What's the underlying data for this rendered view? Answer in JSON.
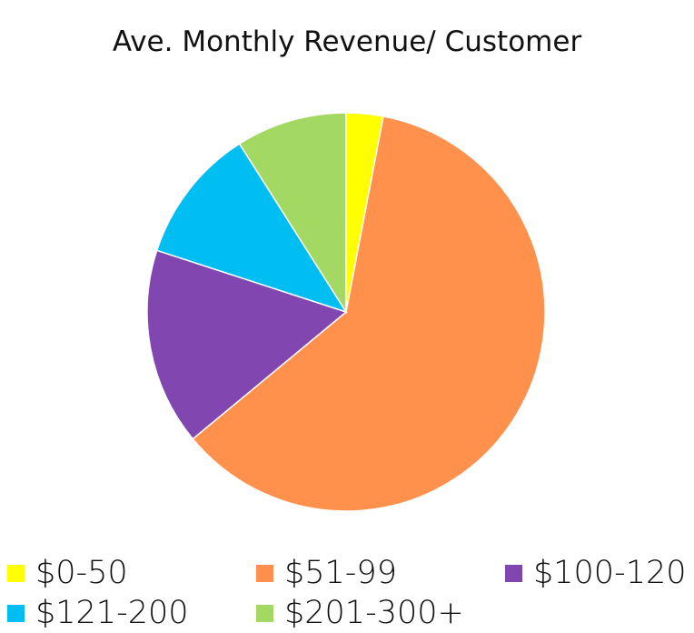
{
  "chart_data": {
    "type": "pie",
    "title": "Ave. Monthly Revenue/ Customer",
    "categories": [
      "$0-50",
      "$51-99",
      "$100-120",
      "$121-200",
      "$201-300+"
    ],
    "values": [
      3,
      61,
      16,
      11,
      9
    ],
    "colors": [
      "#ffff00",
      "#ff914d",
      "#8146b0",
      "#00bdf2",
      "#a3d862"
    ],
    "start_angle": "12 o'clock",
    "direction": "clockwise",
    "legend": "bottom"
  }
}
